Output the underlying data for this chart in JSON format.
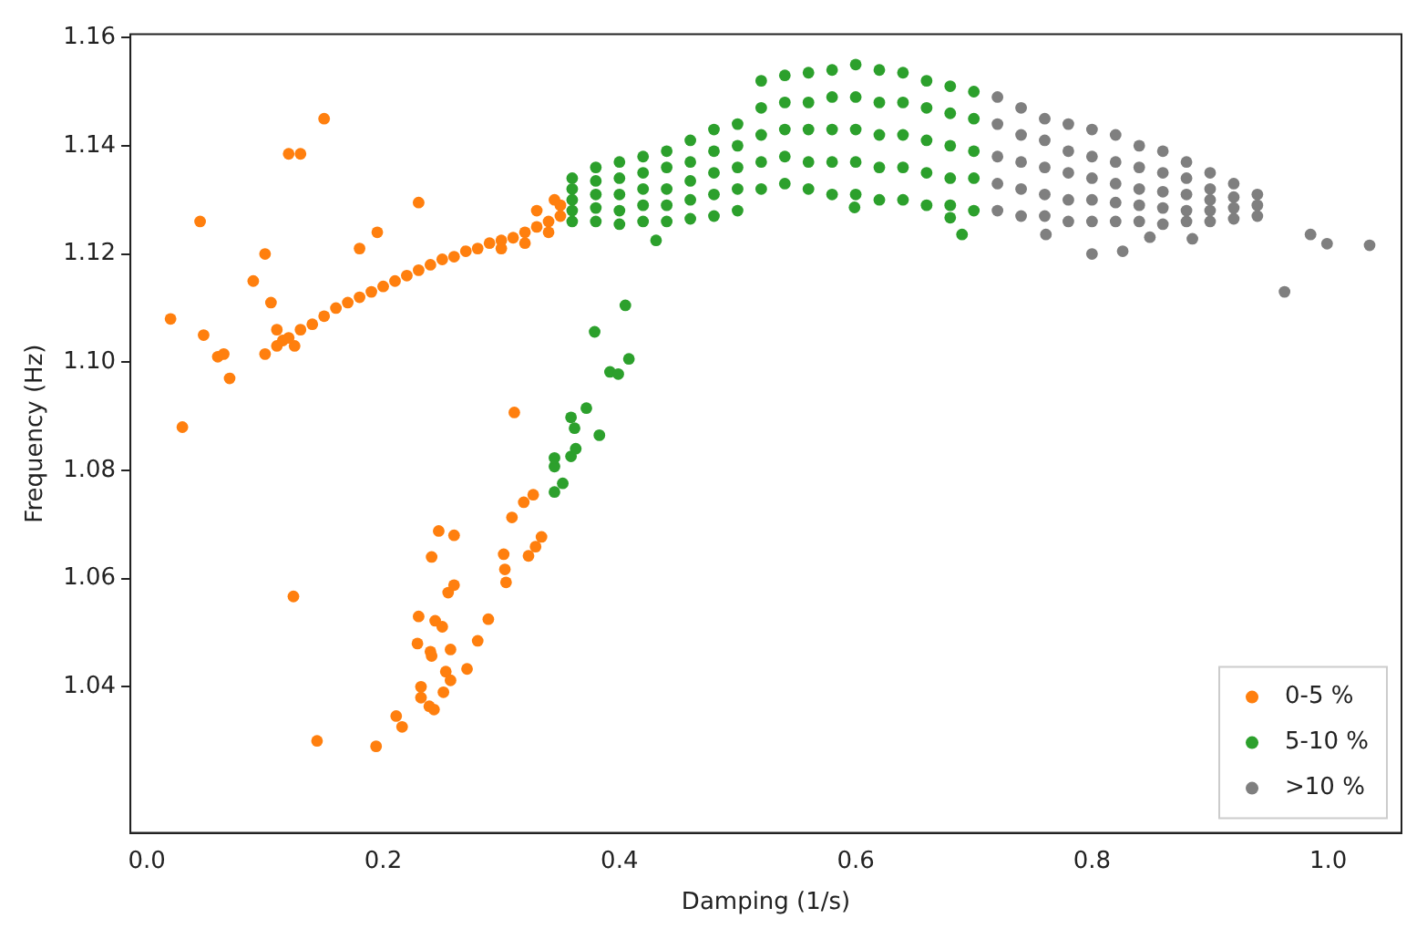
{
  "chart_data": {
    "type": "scatter",
    "xlabel": "Damping (1/s)",
    "ylabel": "Frequency (Hz)",
    "xlim": [
      -0.014,
      1.062
    ],
    "ylim": [
      1.013,
      1.1606
    ],
    "xticks": [
      {
        "value": 0,
        "label": "0.0"
      },
      0.2,
      0.4,
      0.6,
      0.8,
      {
        "value": 1,
        "label": "1.0"
      }
    ],
    "yticks": [
      1.04,
      1.06,
      1.08,
      {
        "value": 1.1,
        "label": "1.10"
      },
      1.12,
      1.14,
      1.16
    ],
    "grid": false,
    "legend": "bottom right",
    "marker": "circle",
    "series": [
      {
        "name": "0-5 %",
        "color": "#ff7f0e",
        "x": [
          0.02,
          0.03,
          0.045,
          0.048,
          0.06,
          0.065,
          0.07,
          0.09,
          0.1,
          0.105,
          0.12,
          0.13,
          0.15,
          0.18,
          0.195,
          0.23,
          0.11,
          0.115,
          0.125,
          0.1,
          0.11,
          0.12,
          0.13,
          0.14,
          0.15,
          0.16,
          0.17,
          0.18,
          0.19,
          0.2,
          0.21,
          0.22,
          0.23,
          0.24,
          0.25,
          0.26,
          0.27,
          0.28,
          0.29,
          0.3,
          0.31,
          0.32,
          0.33,
          0.34,
          0.35,
          0.33,
          0.345,
          0.35,
          0.34,
          0.32,
          0.3,
          0.311,
          0.124,
          0.144,
          0.194,
          0.211,
          0.216,
          0.232,
          0.232,
          0.239,
          0.243,
          0.229,
          0.23,
          0.24,
          0.241,
          0.244,
          0.25,
          0.241,
          0.247,
          0.26,
          0.255,
          0.26,
          0.257,
          0.253,
          0.257,
          0.251,
          0.271,
          0.28,
          0.289,
          0.302,
          0.303,
          0.304,
          0.309,
          0.319,
          0.327,
          0.323,
          0.329,
          0.334
        ],
        "values": [
          1.108,
          1.088,
          1.126,
          1.105,
          1.101,
          1.1015,
          1.097,
          1.115,
          1.12,
          1.111,
          1.1385,
          1.1385,
          1.145,
          1.121,
          1.124,
          1.1295,
          1.106,
          1.104,
          1.103,
          1.1015,
          1.103,
          1.1045,
          1.106,
          1.107,
          1.1085,
          1.11,
          1.111,
          1.112,
          1.113,
          1.114,
          1.115,
          1.116,
          1.117,
          1.118,
          1.119,
          1.1195,
          1.1205,
          1.121,
          1.122,
          1.1225,
          1.123,
          1.124,
          1.125,
          1.126,
          1.127,
          1.128,
          1.13,
          1.129,
          1.124,
          1.122,
          1.121,
          1.0907,
          1.0567,
          1.03,
          1.029,
          1.0346,
          1.0326,
          1.04,
          1.038,
          1.0364,
          1.0358,
          1.048,
          1.053,
          1.0465,
          1.0457,
          1.0522,
          1.0511,
          1.064,
          1.0688,
          1.068,
          1.0574,
          1.0588,
          1.0469,
          1.0428,
          1.0412,
          1.039,
          1.0433,
          1.0485,
          1.0525,
          1.0645,
          1.0617,
          1.0593,
          1.0713,
          1.0741,
          1.0755,
          1.0642,
          1.0659,
          1.0677
        ]
      },
      {
        "name": "5-10 %",
        "color": "#2ca02c",
        "x": [
          0.345,
          0.352,
          0.345,
          0.345,
          0.359,
          0.363,
          0.359,
          0.362,
          0.372,
          0.383,
          0.379,
          0.392,
          0.399,
          0.408,
          0.405,
          0.431,
          0.599,
          0.69,
          0.68,
          0.36,
          0.36,
          0.36,
          0.36,
          0.36,
          0.38,
          0.38,
          0.38,
          0.38,
          0.38,
          0.4,
          0.4,
          0.4,
          0.4,
          0.4,
          0.42,
          0.42,
          0.42,
          0.42,
          0.42,
          0.44,
          0.44,
          0.44,
          0.44,
          0.44,
          0.46,
          0.46,
          0.46,
          0.46,
          0.46,
          0.48,
          0.48,
          0.48,
          0.48,
          0.48,
          0.5,
          0.5,
          0.5,
          0.5,
          0.5,
          0.52,
          0.52,
          0.52,
          0.52,
          0.52,
          0.54,
          0.54,
          0.54,
          0.54,
          0.54,
          0.56,
          0.56,
          0.56,
          0.56,
          0.56,
          0.58,
          0.58,
          0.58,
          0.58,
          0.58,
          0.6,
          0.6,
          0.6,
          0.6,
          0.6,
          0.62,
          0.62,
          0.62,
          0.62,
          0.62,
          0.64,
          0.64,
          0.64,
          0.64,
          0.64,
          0.66,
          0.66,
          0.66,
          0.66,
          0.66,
          0.68,
          0.68,
          0.68,
          0.68,
          0.68,
          0.7,
          0.7,
          0.7,
          0.7,
          0.7
        ],
        "values": [
          1.076,
          1.0776,
          1.0807,
          1.0823,
          1.0826,
          1.084,
          1.0898,
          1.0878,
          1.0915,
          1.0865,
          1.1056,
          1.0982,
          1.0978,
          1.1006,
          1.1105,
          1.1225,
          1.1286,
          1.1236,
          1.1267,
          1.126,
          1.128,
          1.13,
          1.132,
          1.134,
          1.126,
          1.1285,
          1.131,
          1.1335,
          1.136,
          1.1255,
          1.128,
          1.131,
          1.134,
          1.137,
          1.126,
          1.129,
          1.132,
          1.135,
          1.138,
          1.126,
          1.129,
          1.132,
          1.136,
          1.139,
          1.1265,
          1.13,
          1.1335,
          1.137,
          1.141,
          1.127,
          1.131,
          1.135,
          1.139,
          1.143,
          1.128,
          1.132,
          1.136,
          1.14,
          1.144,
          1.132,
          1.137,
          1.142,
          1.147,
          1.152,
          1.133,
          1.138,
          1.143,
          1.148,
          1.153,
          1.132,
          1.137,
          1.143,
          1.148,
          1.1535,
          1.131,
          1.137,
          1.143,
          1.149,
          1.154,
          1.131,
          1.137,
          1.143,
          1.149,
          1.155,
          1.13,
          1.136,
          1.142,
          1.148,
          1.154,
          1.13,
          1.136,
          1.142,
          1.148,
          1.1535,
          1.129,
          1.135,
          1.141,
          1.147,
          1.152,
          1.129,
          1.134,
          1.14,
          1.146,
          1.151,
          1.128,
          1.134,
          1.139,
          1.145,
          1.15
        ]
      },
      {
        "name": ">10 %",
        "color": "#7f7f7f",
        "x": [
          0.8,
          0.826,
          0.985,
          0.999,
          1.035,
          0.963,
          0.761,
          0.849,
          0.885,
          0.72,
          0.72,
          0.72,
          0.72,
          0.72,
          0.74,
          0.74,
          0.74,
          0.74,
          0.74,
          0.76,
          0.76,
          0.76,
          0.76,
          0.76,
          0.78,
          0.78,
          0.78,
          0.78,
          0.78,
          0.8,
          0.8,
          0.8,
          0.8,
          0.8,
          0.82,
          0.82,
          0.82,
          0.82,
          0.82,
          0.84,
          0.84,
          0.84,
          0.84,
          0.84,
          0.86,
          0.86,
          0.86,
          0.86,
          0.86,
          0.88,
          0.88,
          0.88,
          0.88,
          0.88,
          0.9,
          0.9,
          0.9,
          0.9,
          0.9,
          0.92,
          0.92,
          0.92,
          0.92,
          0.94,
          0.94,
          0.94
        ],
        "values": [
          1.12,
          1.1205,
          1.1236,
          1.1219,
          1.1216,
          1.113,
          1.1236,
          1.1231,
          1.1228,
          1.128,
          1.133,
          1.138,
          1.144,
          1.149,
          1.127,
          1.132,
          1.137,
          1.142,
          1.147,
          1.127,
          1.131,
          1.136,
          1.141,
          1.145,
          1.126,
          1.13,
          1.135,
          1.139,
          1.144,
          1.126,
          1.13,
          1.134,
          1.138,
          1.143,
          1.126,
          1.1295,
          1.133,
          1.137,
          1.142,
          1.126,
          1.129,
          1.132,
          1.136,
          1.14,
          1.1255,
          1.1285,
          1.1315,
          1.135,
          1.139,
          1.126,
          1.128,
          1.131,
          1.134,
          1.137,
          1.126,
          1.128,
          1.13,
          1.132,
          1.135,
          1.1265,
          1.1285,
          1.1305,
          1.133,
          1.127,
          1.129,
          1.131
        ]
      }
    ]
  }
}
